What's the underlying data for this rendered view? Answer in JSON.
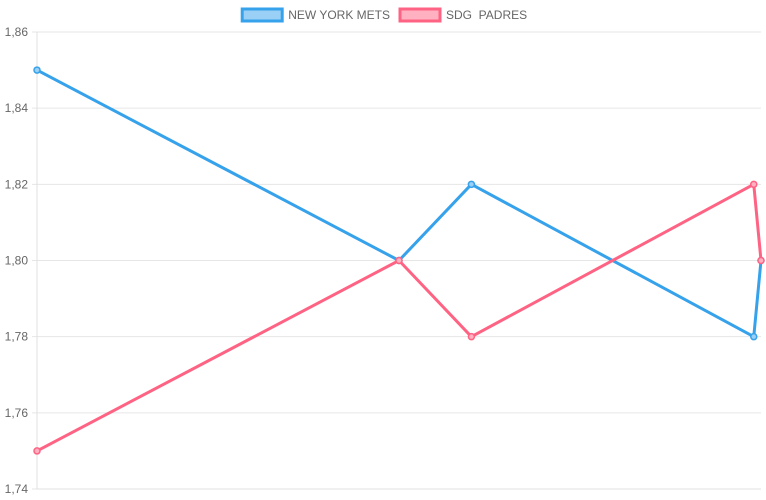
{
  "chart_data": {
    "type": "line",
    "title": "",
    "xlabel": "",
    "ylabel": "",
    "x": [
      0,
      0.5,
      0.6,
      0.99,
      1.0
    ],
    "ylim": [
      1.74,
      1.86
    ],
    "yticks": [
      "1,74",
      "1,76",
      "1,78",
      "1,80",
      "1,82",
      "1,84",
      "1,86"
    ],
    "grid": true,
    "legend_position": "top-center",
    "series": [
      {
        "name": "NEW YORK METS",
        "color": "#36a2eb",
        "fill": "#9ad0f5",
        "values": [
          1.85,
          1.8,
          1.82,
          1.78,
          1.8
        ]
      },
      {
        "name": "SDG  PADRES",
        "color": "#ff6384",
        "fill": "#ffb1c1",
        "values": [
          1.75,
          1.8,
          1.78,
          1.82,
          1.8
        ]
      }
    ]
  }
}
